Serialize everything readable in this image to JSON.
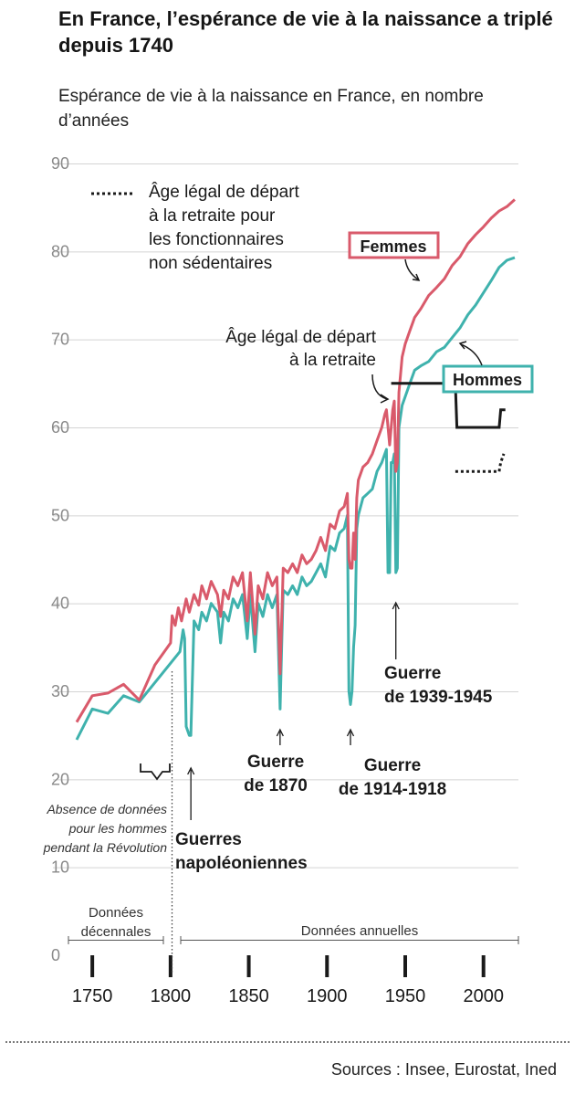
{
  "title": "En France, l’espérance de vie à la naissance a triplé depuis 1740",
  "subtitle": "Espérance de vie à la naissance en France, en nombre d’années",
  "sources": "Sources : Insee, Eurostat, Ined",
  "colors": {
    "femmes": "#d95a6b",
    "hommes": "#3fb2ad",
    "grid": "#d4d4d4",
    "axis_text": "#8a8a8a",
    "text": "#1a1a1a"
  },
  "chart_data": {
    "type": "line",
    "title": "Espérance de vie à la naissance en France, en nombre d’années",
    "xlabel": "",
    "ylabel": "",
    "xlim": [
      1740,
      2020
    ],
    "ylim": [
      0,
      90
    ],
    "x_ticks": [
      1750,
      1800,
      1850,
      1900,
      1950,
      2000
    ],
    "y_ticks": [
      0,
      10,
      20,
      30,
      40,
      50,
      60,
      70,
      80,
      90
    ],
    "grid": true,
    "series": [
      {
        "name": "Femmes",
        "color": "#d95a6b",
        "points": [
          [
            1740,
            26.5
          ],
          [
            1750,
            29.5
          ],
          [
            1760,
            29.8
          ],
          [
            1770,
            30.8
          ],
          [
            1780,
            29
          ],
          [
            1790,
            33
          ],
          [
            1800,
            35.5
          ],
          [
            1801,
            38.6
          ],
          [
            1803,
            37.5
          ],
          [
            1805,
            39.5
          ],
          [
            1807,
            38
          ],
          [
            1810,
            40.5
          ],
          [
            1812,
            39
          ],
          [
            1815,
            41
          ],
          [
            1818,
            39.8
          ],
          [
            1820,
            42
          ],
          [
            1823,
            40.5
          ],
          [
            1826,
            42.5
          ],
          [
            1830,
            41
          ],
          [
            1832,
            38.5
          ],
          [
            1834,
            41.5
          ],
          [
            1837,
            40.5
          ],
          [
            1840,
            43
          ],
          [
            1843,
            42
          ],
          [
            1846,
            43.5
          ],
          [
            1849,
            38
          ],
          [
            1851,
            43.5
          ],
          [
            1854,
            36.5
          ],
          [
            1856,
            42
          ],
          [
            1859,
            40.5
          ],
          [
            1862,
            43.5
          ],
          [
            1865,
            42
          ],
          [
            1868,
            43
          ],
          [
            1870,
            32
          ],
          [
            1871,
            38
          ],
          [
            1872,
            44
          ],
          [
            1875,
            43.5
          ],
          [
            1878,
            44.5
          ],
          [
            1881,
            43.5
          ],
          [
            1884,
            45.5
          ],
          [
            1887,
            44.5
          ],
          [
            1890,
            45
          ],
          [
            1893,
            46
          ],
          [
            1896,
            47.5
          ],
          [
            1899,
            46
          ],
          [
            1902,
            49
          ],
          [
            1905,
            48.5
          ],
          [
            1908,
            50.5
          ],
          [
            1911,
            51
          ],
          [
            1913,
            52.5
          ],
          [
            1914,
            45
          ],
          [
            1915,
            44
          ],
          [
            1916,
            44
          ],
          [
            1917,
            48
          ],
          [
            1918,
            45
          ],
          [
            1919,
            52
          ],
          [
            1920,
            54
          ],
          [
            1923,
            55.5
          ],
          [
            1926,
            56
          ],
          [
            1929,
            57
          ],
          [
            1932,
            58.5
          ],
          [
            1935,
            60
          ],
          [
            1937,
            61.5
          ],
          [
            1938,
            62
          ],
          [
            1940,
            58
          ],
          [
            1942,
            62
          ],
          [
            1943,
            63
          ],
          [
            1944,
            55
          ],
          [
            1945,
            56
          ],
          [
            1946,
            64
          ],
          [
            1948,
            68
          ],
          [
            1950,
            69.5
          ],
          [
            1953,
            71
          ],
          [
            1956,
            72.5
          ],
          [
            1960,
            73.5
          ],
          [
            1965,
            75
          ],
          [
            1970,
            75.9
          ],
          [
            1975,
            76.9
          ],
          [
            1980,
            78.4
          ],
          [
            1985,
            79.4
          ],
          [
            1990,
            80.9
          ],
          [
            1995,
            81.9
          ],
          [
            2000,
            82.8
          ],
          [
            2005,
            83.8
          ],
          [
            2010,
            84.6
          ],
          [
            2015,
            85.1
          ],
          [
            2020,
            85.9
          ]
        ]
      },
      {
        "name": "Hommes",
        "color": "#3fb2ad",
        "points": [
          [
            1740,
            24.5
          ],
          [
            1750,
            28
          ],
          [
            1760,
            27.5
          ],
          [
            1770,
            29.5
          ],
          [
            1780,
            28.8
          ],
          [
            1806,
            34.5
          ],
          [
            1808,
            37
          ],
          [
            1809,
            36
          ],
          [
            1810,
            26
          ],
          [
            1812,
            25
          ],
          [
            1813,
            25
          ],
          [
            1815,
            38
          ],
          [
            1818,
            37
          ],
          [
            1820,
            39
          ],
          [
            1823,
            38
          ],
          [
            1826,
            40
          ],
          [
            1830,
            39
          ],
          [
            1832,
            35.5
          ],
          [
            1834,
            39
          ],
          [
            1837,
            38
          ],
          [
            1840,
            40.5
          ],
          [
            1843,
            39.5
          ],
          [
            1846,
            41
          ],
          [
            1849,
            36
          ],
          [
            1851,
            41
          ],
          [
            1854,
            34.5
          ],
          [
            1856,
            40
          ],
          [
            1859,
            38.5
          ],
          [
            1862,
            41
          ],
          [
            1865,
            39.5
          ],
          [
            1868,
            41
          ],
          [
            1870,
            28
          ],
          [
            1871,
            35
          ],
          [
            1872,
            41.5
          ],
          [
            1875,
            41
          ],
          [
            1878,
            42
          ],
          [
            1881,
            41
          ],
          [
            1884,
            43
          ],
          [
            1887,
            42
          ],
          [
            1890,
            42.5
          ],
          [
            1893,
            43.5
          ],
          [
            1896,
            44.5
          ],
          [
            1899,
            43
          ],
          [
            1902,
            46.5
          ],
          [
            1905,
            46
          ],
          [
            1908,
            48
          ],
          [
            1911,
            48.5
          ],
          [
            1913,
            50
          ],
          [
            1914,
            30
          ],
          [
            1915,
            28.5
          ],
          [
            1916,
            30
          ],
          [
            1917,
            35
          ],
          [
            1918,
            37.5
          ],
          [
            1919,
            48.5
          ],
          [
            1920,
            50
          ],
          [
            1923,
            52
          ],
          [
            1926,
            52.5
          ],
          [
            1929,
            53
          ],
          [
            1932,
            55
          ],
          [
            1935,
            56
          ],
          [
            1937,
            57
          ],
          [
            1938,
            57.5
          ],
          [
            1939,
            43.5
          ],
          [
            1940,
            43.5
          ],
          [
            1941,
            56
          ],
          [
            1942,
            56
          ],
          [
            1943,
            57
          ],
          [
            1944,
            43.5
          ],
          [
            1945,
            44
          ],
          [
            1946,
            60
          ],
          [
            1948,
            62.5
          ],
          [
            1950,
            63.5
          ],
          [
            1953,
            65
          ],
          [
            1956,
            66.5
          ],
          [
            1960,
            67
          ],
          [
            1965,
            67.5
          ],
          [
            1970,
            68.6
          ],
          [
            1975,
            69.1
          ],
          [
            1980,
            70.2
          ],
          [
            1985,
            71.3
          ],
          [
            1990,
            72.8
          ],
          [
            1995,
            73.9
          ],
          [
            2000,
            75.3
          ],
          [
            2005,
            76.7
          ],
          [
            2010,
            78.2
          ],
          [
            2015,
            79
          ],
          [
            2020,
            79.3
          ]
        ]
      },
      {
        "name": "Âge légal de départ à la retraite",
        "points": [
          [
            1941,
            65
          ],
          [
            1982,
            65
          ],
          [
            1983,
            60
          ],
          [
            2010,
            60
          ],
          [
            2011,
            62
          ],
          [
            2014,
            62
          ]
        ]
      },
      {
        "name": "Âge légal de départ à la retraite pour les fonctionnaires non sédentaires",
        "points": [
          [
            1982,
            55
          ],
          [
            2010,
            55
          ],
          [
            2011,
            56
          ],
          [
            2013,
            57
          ]
        ]
      }
    ],
    "annotations": [
      {
        "id": "femmes",
        "text": "Femmes"
      },
      {
        "id": "hommes",
        "text": "Hommes"
      },
      {
        "id": "retraite",
        "lines": [
          "Âge légal de départ",
          "à la retraite"
        ]
      },
      {
        "id": "retraite_fonctionnaires",
        "lines": [
          "Âge légal de départ",
          "à la retraite pour",
          "les fonctionnaires",
          "non sédentaires"
        ]
      },
      {
        "id": "guerres_napoleoniennes",
        "year": 1813,
        "lines": [
          "Guerres",
          "napoléoniennes"
        ]
      },
      {
        "id": "guerre_1870",
        "year": 1870,
        "lines": [
          "Guerre",
          "de 1870"
        ]
      },
      {
        "id": "guerre_1914",
        "year": 1915,
        "lines": [
          "Guerre",
          "de 1914-1918"
        ]
      },
      {
        "id": "guerre_1939",
        "year": 1944,
        "lines": [
          "Guerre",
          "de 1939-1945"
        ]
      },
      {
        "id": "revolution",
        "lines": [
          "Absence de données",
          "pour les hommes",
          "pendant la Révolution"
        ]
      },
      {
        "id": "decennales",
        "lines": [
          "Données",
          "décennales"
        ]
      },
      {
        "id": "annuelles",
        "lines": [
          "Données annuelles"
        ]
      }
    ]
  }
}
